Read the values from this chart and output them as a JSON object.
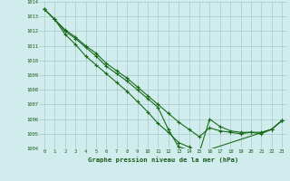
{
  "series1_x": [
    0,
    1,
    2,
    3,
    4,
    5,
    6,
    7,
    8,
    9,
    10,
    11,
    12,
    13,
    14,
    15,
    16,
    17,
    18,
    19,
    20,
    21,
    22,
    23
  ],
  "series1_y": [
    1013.5,
    1012.8,
    1012.1,
    1011.6,
    1011.0,
    1010.5,
    1009.8,
    1009.3,
    1008.8,
    1008.2,
    1007.6,
    1007.0,
    1006.4,
    1005.8,
    1005.3,
    1004.8,
    1005.4,
    1005.2,
    1005.1,
    1005.0,
    1005.1,
    1005.1,
    1005.3,
    1005.9
  ],
  "series2_x": [
    0,
    1,
    2,
    3,
    4,
    5,
    6,
    7,
    8,
    9,
    10,
    11,
    12,
    13,
    14,
    15,
    22,
    23
  ],
  "series2_y": [
    1013.5,
    1012.8,
    1011.8,
    1011.1,
    1010.3,
    1009.7,
    1009.1,
    1008.5,
    1007.9,
    1007.2,
    1006.5,
    1005.7,
    1005.1,
    1004.4,
    1004.1,
    1003.7,
    1005.3,
    1005.9
  ],
  "series3_x": [
    0,
    1,
    2,
    3,
    4,
    5,
    6,
    7,
    8,
    9,
    10,
    11,
    12,
    13,
    14,
    15,
    16,
    17,
    18,
    19,
    20,
    21,
    22,
    23
  ],
  "series3_y": [
    1013.5,
    1012.8,
    1012.0,
    1011.5,
    1010.9,
    1010.3,
    1009.6,
    1009.1,
    1008.6,
    1008.0,
    1007.4,
    1006.8,
    1005.3,
    1004.1,
    1003.9,
    1003.7,
    1006.0,
    1005.5,
    1005.2,
    1005.1,
    1005.1,
    1005.0,
    1005.3,
    1005.9
  ],
  "line_color": "#1a6b1a",
  "bg_color": "#d0ecec",
  "grid_color": "#a8caca",
  "text_color": "#1a5c1a",
  "title": "Graphe pression niveau de la mer (hPa)",
  "ylim": [
    1004,
    1014
  ],
  "xlim": [
    -0.5,
    23.5
  ],
  "yticks": [
    1004,
    1005,
    1006,
    1007,
    1008,
    1009,
    1010,
    1011,
    1012,
    1013,
    1014
  ],
  "xticks": [
    0,
    1,
    2,
    3,
    4,
    5,
    6,
    7,
    8,
    9,
    10,
    11,
    12,
    13,
    14,
    15,
    16,
    17,
    18,
    19,
    20,
    21,
    22,
    23
  ]
}
